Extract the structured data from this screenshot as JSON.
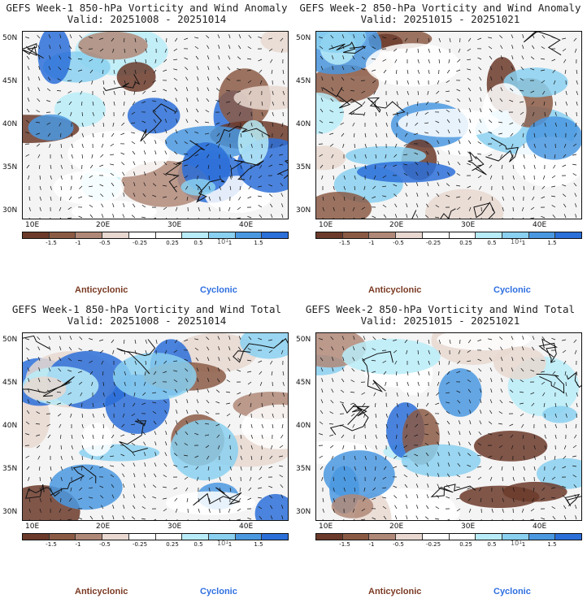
{
  "colors": [
    "#6b3a2a",
    "#8b5a45",
    "#b08878",
    "#e8d8d0",
    "#ffffff",
    "#ffffff",
    "#b8ecf8",
    "#8ad0f0",
    "#4a98e0",
    "#2b6fd8"
  ],
  "colorbar_ticks": [
    "-1.5",
    "-1",
    "-0.5",
    "-0.25",
    "0.25",
    "0.5",
    "1",
    "1.5"
  ],
  "colorbar_scale_label": "10",
  "colorbar_scale_exp": "1",
  "legend": {
    "anticyclonic": "Anticyclonic",
    "cyclonic": "Cyclonic"
  },
  "chart_data": [
    {
      "type": "heatmap",
      "title": "GEFS Week-1 850-hPa Vorticity and Wind Anomaly",
      "subtitle": "Valid: 20251008 - 20251014",
      "x_ticks": [
        "10E",
        "20E",
        "30E",
        "40E"
      ],
      "y_ticks": [
        "50N",
        "45N",
        "40N",
        "35N",
        "30N"
      ],
      "xlim": [
        8.5,
        46
      ],
      "ylim": [
        28.5,
        51
      ],
      "field": "850-hPa relative vorticity anomaly (x1e-5 s^-1) with wind vectors",
      "color_levels": [
        -1.5,
        -1,
        -0.5,
        -0.25,
        0.25,
        0.5,
        1,
        1.5
      ]
    },
    {
      "type": "heatmap",
      "title": "GEFS Week-2 850-hPa Vorticity and Wind Anomaly",
      "subtitle": "Valid: 20251015 - 20251021",
      "x_ticks": [
        "10E",
        "20E",
        "30E",
        "40E"
      ],
      "y_ticks": [
        "50N",
        "45N",
        "40N",
        "35N",
        "30N"
      ],
      "xlim": [
        8.5,
        46
      ],
      "ylim": [
        28.5,
        51
      ],
      "field": "850-hPa relative vorticity anomaly (x1e-5 s^-1) with wind vectors",
      "color_levels": [
        -1.5,
        -1,
        -0.5,
        -0.25,
        0.25,
        0.5,
        1,
        1.5
      ]
    },
    {
      "type": "heatmap",
      "title": "GEFS Week-1 850-hPa Vorticity and Wind Total",
      "subtitle": "Valid: 20251008 - 20251014",
      "x_ticks": [
        "10E",
        "20E",
        "30E",
        "40E"
      ],
      "y_ticks": [
        "50N",
        "45N",
        "40N",
        "35N",
        "30N"
      ],
      "xlim": [
        8.5,
        46
      ],
      "ylim": [
        28.5,
        51
      ],
      "field": "850-hPa relative vorticity total (x1e-5 s^-1) with wind vectors",
      "color_levels": [
        -1.5,
        -1,
        -0.5,
        -0.25,
        0.25,
        0.5,
        1,
        1.5
      ]
    },
    {
      "type": "heatmap",
      "title": "GEFS Week-2 850-hPa Vorticity and Wind Total",
      "subtitle": "Valid: 20251015 - 20251021",
      "x_ticks": [
        "10E",
        "20E",
        "30E",
        "40E"
      ],
      "y_ticks": [
        "50N",
        "45N",
        "40N",
        "35N",
        "30N"
      ],
      "xlim": [
        8.5,
        46
      ],
      "ylim": [
        28.5,
        51
      ],
      "field": "850-hPa relative vorticity total (x1e-5 s^-1) with wind vectors",
      "color_levels": [
        -1.5,
        -1,
        -0.5,
        -0.25,
        0.25,
        0.5,
        1,
        1.5
      ]
    }
  ]
}
